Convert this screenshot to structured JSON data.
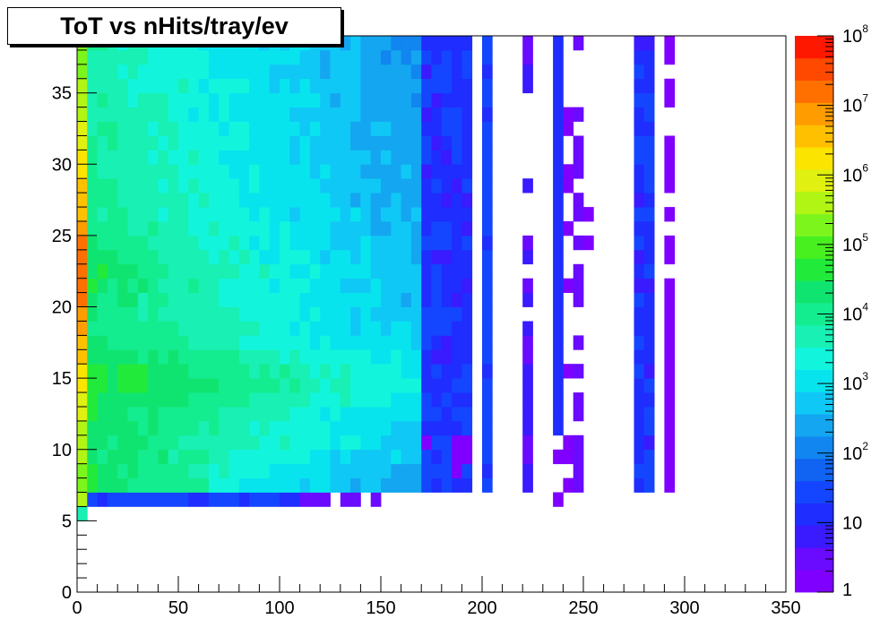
{
  "chart_data": {
    "type": "heatmap",
    "title": "ToT vs nHits/tray/ev",
    "xlabel": "",
    "ylabel": "",
    "xlim": [
      0,
      350
    ],
    "ylim": [
      0,
      39
    ],
    "x_ticks": [
      "0",
      "50",
      "100",
      "150",
      "200",
      "250",
      "300",
      "350"
    ],
    "y_ticks": [
      "0",
      "5",
      "10",
      "15",
      "20",
      "25",
      "30",
      "35"
    ],
    "color_scale": {
      "type": "log",
      "range": [
        1,
        100000000
      ],
      "tick_labels": [
        {
          "base": "1",
          "exp": ""
        },
        {
          "base": "10",
          "exp": ""
        },
        {
          "base": "10",
          "exp": "2"
        },
        {
          "base": "10",
          "exp": "3"
        },
        {
          "base": "10",
          "exp": "4"
        },
        {
          "base": "10",
          "exp": "5"
        },
        {
          "base": "10",
          "exp": "6"
        },
        {
          "base": "10",
          "exp": "7"
        },
        {
          "base": "10",
          "exp": "8"
        }
      ],
      "palette": [
        "#7f00ff",
        "#6a0aff",
        "#3a1aff",
        "#1f2dff",
        "#1446ff",
        "#1163f2",
        "#1185f0",
        "#14a6f0",
        "#10c8f5",
        "#08e4ee",
        "#12f5dc",
        "#18f0b4",
        "#14ec90",
        "#10e470",
        "#22ea3a",
        "#48f020",
        "#7cf51c",
        "#b0f514",
        "#e0f010",
        "#fbe400",
        "#ffc000",
        "#ff9c00",
        "#ff7000",
        "#ff4800",
        "#ff1800"
      ]
    },
    "grid": false,
    "legend": "none",
    "bin_width_x": 5,
    "bin_width_y": 1,
    "log10_counts_by_region": [
      {
        "x": [
          0,
          5
        ],
        "y": [
          6,
          39
        ],
        "peak_y": 22,
        "peak_log10": 7.3,
        "min_log10": 5.2
      },
      {
        "x": [
          5,
          60
        ],
        "y": [
          6,
          39
        ],
        "peak_y": [
          14,
          22
        ],
        "peak_log10": 4.3
      },
      {
        "x": [
          60,
          170
        ],
        "y": [
          6,
          39
        ],
        "typical_log10": 2.6
      },
      {
        "x": [
          170,
          195
        ],
        "y": [
          6,
          39
        ],
        "typical_log10": 1.2
      },
      {
        "x": [
          200,
          205
        ],
        "y": [
          6,
          39
        ],
        "typical_log10": 1.4
      },
      {
        "x": [
          220,
          225
        ],
        "y": [
          6,
          39
        ],
        "typical_log10": 0.7
      },
      {
        "x": [
          235,
          255
        ],
        "y": [
          6,
          39
        ],
        "typical_log10": 0.3
      },
      {
        "x": [
          275,
          285
        ],
        "y": [
          6,
          39
        ],
        "typical_log10": 1.2
      },
      {
        "x": [
          290,
          295
        ],
        "y": [
          6,
          39
        ],
        "typical_log10": 0.3
      },
      {
        "x": [
          0,
          150
        ],
        "y": [
          6,
          7
        ],
        "typical_log10": 1.0
      }
    ]
  }
}
